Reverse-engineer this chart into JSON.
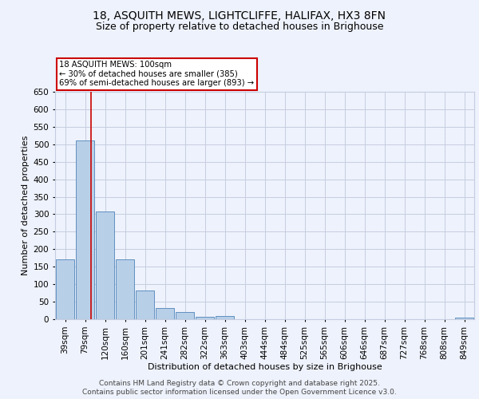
{
  "title_line1": "18, ASQUITH MEWS, LIGHTCLIFFE, HALIFAX, HX3 8FN",
  "title_line2": "Size of property relative to detached houses in Brighouse",
  "xlabel": "Distribution of detached houses by size in Brighouse",
  "ylabel": "Number of detached properties",
  "categories": [
    "39sqm",
    "79sqm",
    "120sqm",
    "160sqm",
    "201sqm",
    "241sqm",
    "282sqm",
    "322sqm",
    "363sqm",
    "403sqm",
    "444sqm",
    "484sqm",
    "525sqm",
    "565sqm",
    "606sqm",
    "646sqm",
    "687sqm",
    "727sqm",
    "768sqm",
    "808sqm",
    "849sqm"
  ],
  "values": [
    170,
    510,
    308,
    172,
    82,
    33,
    20,
    7,
    8,
    0,
    0,
    0,
    0,
    0,
    0,
    0,
    0,
    0,
    0,
    0,
    5
  ],
  "bar_color": "#b8cfe8",
  "bar_edge_color": "#6090c0",
  "vline_x_index": 1.3,
  "vline_color": "#cc0000",
  "annotation_text": "18 ASQUITH MEWS: 100sqm\n← 30% of detached houses are smaller (385)\n69% of semi-detached houses are larger (893) →",
  "annotation_box_color": "#cc0000",
  "ylim": [
    0,
    650
  ],
  "yticks": [
    0,
    50,
    100,
    150,
    200,
    250,
    300,
    350,
    400,
    450,
    500,
    550,
    600,
    650
  ],
  "footer_line1": "Contains HM Land Registry data © Crown copyright and database right 2025.",
  "footer_line2": "Contains public sector information licensed under the Open Government Licence v3.0.",
  "bg_color": "#eef2fc",
  "plot_bg_color": "#eef2fc",
  "grid_color": "#c5cde0",
  "title_fontsize": 10,
  "subtitle_fontsize": 9,
  "axis_label_fontsize": 8,
  "tick_fontsize": 7.5,
  "footer_fontsize": 6.5
}
